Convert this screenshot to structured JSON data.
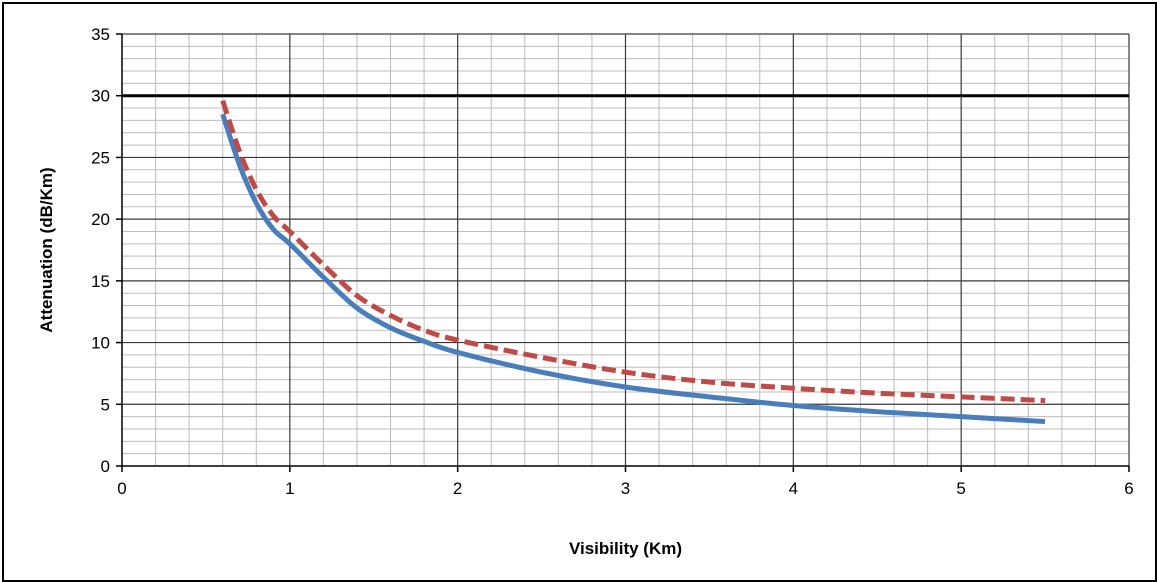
{
  "chart_data": {
    "type": "line",
    "title": "",
    "xlabel": "Visibility (Km)",
    "ylabel": "Attenuation  (dB/Km)",
    "xlim": [
      0,
      6
    ],
    "ylim": [
      0,
      35
    ],
    "x_ticks": [
      "0",
      "1",
      "2",
      "3",
      "4",
      "5",
      "6"
    ],
    "y_ticks": [
      "0",
      "5",
      "10",
      "15",
      "20",
      "25",
      "30",
      "35"
    ],
    "grid": true,
    "legend": "none",
    "reference_lines": [
      {
        "axis": "y",
        "value": 30
      }
    ],
    "series": [
      {
        "color": "#4a7ebb",
        "style": "solid",
        "x": [
          0.6,
          0.7,
          0.8,
          0.9,
          1.0,
          1.2,
          1.4,
          1.6,
          1.8,
          2.0,
          2.5,
          3.0,
          3.5,
          4.0,
          4.5,
          5.0,
          5.5
        ],
        "y": [
          28.5,
          24.4,
          21.3,
          19.2,
          18.0,
          15.3,
          12.8,
          11.2,
          10.1,
          9.2,
          7.6,
          6.4,
          5.6,
          4.9,
          4.4,
          4.0,
          3.6
        ]
      },
      {
        "color": "#be4b48",
        "style": "dashed",
        "x": [
          0.6,
          0.7,
          0.8,
          0.9,
          1.0,
          1.2,
          1.4,
          1.6,
          1.8,
          2.0,
          2.5,
          3.0,
          3.5,
          4.0,
          4.5,
          5.0,
          5.5
        ],
        "y": [
          29.6,
          25.5,
          22.4,
          20.3,
          19.0,
          16.3,
          13.8,
          12.2,
          11.0,
          10.2,
          8.8,
          7.6,
          6.8,
          6.3,
          5.9,
          5.6,
          5.3
        ]
      }
    ]
  }
}
